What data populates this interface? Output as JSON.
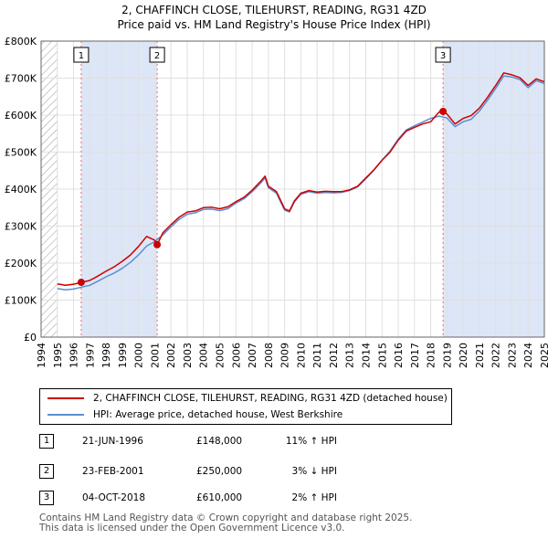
{
  "title_line1": "2, CHAFFINCH CLOSE, TILEHURST, READING, RG31 4ZD",
  "title_line2": "Price paid vs. HM Land Registry's House Price Index (HPI)",
  "colors": {
    "price_line": "#cc0000",
    "hpi_line": "#5b8fd0",
    "shade": "#dde6f7",
    "hatch": "#999999",
    "marker_vline": "#e46d6d"
  },
  "chart_data": {
    "type": "line",
    "title": "Price paid vs. HM Land Registry's House Price Index (HPI)",
    "xlabel": "",
    "ylabel": "",
    "xlim": [
      1994,
      2025
    ],
    "ylim": [
      0,
      800000
    ],
    "y_ticks": [
      {
        "value": 0,
        "label": "£0"
      },
      {
        "value": 100000,
        "label": "£100K"
      },
      {
        "value": 200000,
        "label": "£200K"
      },
      {
        "value": 300000,
        "label": "£300K"
      },
      {
        "value": 400000,
        "label": "£400K"
      },
      {
        "value": 500000,
        "label": "£500K"
      },
      {
        "value": 600000,
        "label": "£600K"
      },
      {
        "value": 700000,
        "label": "£700K"
      },
      {
        "value": 800000,
        "label": "£800K"
      }
    ],
    "x_ticks": [
      "1994",
      "1995",
      "1996",
      "1997",
      "1998",
      "1999",
      "2000",
      "2001",
      "2002",
      "2003",
      "2004",
      "2005",
      "2006",
      "2007",
      "2008",
      "2009",
      "2010",
      "2011",
      "2012",
      "2013",
      "2014",
      "2015",
      "2016",
      "2017",
      "2018",
      "2019",
      "2020",
      "2021",
      "2022",
      "2023",
      "2024",
      "2025"
    ],
    "grid": true,
    "data_start_year": 1995,
    "data_end_year": 2025,
    "series": [
      {
        "name": "2, CHAFFINCH CLOSE, TILEHURST, READING, RG31 4ZD (detached house)",
        "x": [
          1995.0,
          1995.5,
          1996.0,
          1996.47,
          1997.0,
          1997.5,
          1998.0,
          1998.5,
          1999.0,
          1999.5,
          2000.0,
          2000.5,
          2001.0,
          2001.15,
          2001.5,
          2002.0,
          2002.5,
          2003.0,
          2003.5,
          2004.0,
          2004.5,
          2005.0,
          2005.5,
          2006.0,
          2006.5,
          2007.0,
          2007.5,
          2007.8,
          2008.0,
          2008.5,
          2009.0,
          2009.3,
          2009.6,
          2010.0,
          2010.5,
          2011.0,
          2011.5,
          2012.0,
          2012.5,
          2013.0,
          2013.5,
          2014.0,
          2014.5,
          2015.0,
          2015.5,
          2016.0,
          2016.5,
          2017.0,
          2017.5,
          2018.0,
          2018.5,
          2018.76,
          2019.0,
          2019.5,
          2020.0,
          2020.5,
          2021.0,
          2021.5,
          2022.0,
          2022.5,
          2023.0,
          2023.5,
          2024.0,
          2024.5,
          2025.0
        ],
        "values": [
          144000,
          140000,
          143000,
          148000,
          153000,
          165000,
          178000,
          190000,
          205000,
          222000,
          245000,
          272000,
          262000,
          250000,
          282000,
          304000,
          324000,
          338000,
          341000,
          350000,
          351000,
          347000,
          352000,
          366000,
          378000,
          397000,
          420000,
          435000,
          408000,
          393000,
          347000,
          341000,
          368000,
          389000,
          396000,
          392000,
          394000,
          393000,
          393000,
          398000,
          408000,
          430000,
          452000,
          478000,
          500000,
          532000,
          557000,
          567000,
          576000,
          582000,
          608000,
          610000,
          603000,
          576000,
          591000,
          599000,
          619000,
          648000,
          680000,
          714000,
          709000,
          701000,
          680000,
          698000,
          690000
        ]
      },
      {
        "name": "HPI: Average price, detached house, West Berkshire",
        "x": [
          1995.0,
          1995.5,
          1996.0,
          1996.5,
          1997.0,
          1997.5,
          1998.0,
          1998.5,
          1999.0,
          1999.5,
          2000.0,
          2000.5,
          2001.0,
          2001.5,
          2002.0,
          2002.5,
          2003.0,
          2003.5,
          2004.0,
          2004.5,
          2005.0,
          2005.5,
          2006.0,
          2006.5,
          2007.0,
          2007.5,
          2007.8,
          2008.0,
          2008.5,
          2009.0,
          2009.3,
          2009.6,
          2010.0,
          2010.5,
          2011.0,
          2011.5,
          2012.0,
          2012.5,
          2013.0,
          2013.5,
          2014.0,
          2014.5,
          2015.0,
          2015.5,
          2016.0,
          2016.5,
          2017.0,
          2017.5,
          2018.0,
          2018.5,
          2019.0,
          2019.5,
          2020.0,
          2020.5,
          2021.0,
          2021.5,
          2022.0,
          2022.5,
          2023.0,
          2023.5,
          2024.0,
          2024.5,
          2025.0
        ],
        "values": [
          131000,
          128000,
          130000,
          135000,
          140000,
          151000,
          163000,
          173000,
          186000,
          202000,
          222000,
          246000,
          258000,
          276000,
          298000,
          318000,
          332000,
          336000,
          345000,
          346000,
          342000,
          347000,
          362000,
          374000,
          393000,
          415000,
          430000,
          404000,
          389000,
          343000,
          338000,
          365000,
          386000,
          393000,
          389000,
          391000,
          390000,
          391000,
          396000,
          406000,
          428000,
          451000,
          478000,
          503000,
          535000,
          560000,
          571000,
          581000,
          591000,
          597000,
          592000,
          569000,
          582000,
          589000,
          611000,
          640000,
          672000,
          706000,
          703000,
          696000,
          674000,
          693000,
          685000
        ]
      }
    ],
    "annotations": [
      {
        "label": "1",
        "x": 1996.47
      },
      {
        "label": "2",
        "x": 2001.15
      },
      {
        "label": "3",
        "x": 2018.76
      }
    ]
  },
  "legend": {
    "price_label": "2, CHAFFINCH CLOSE, TILEHURST, READING, RG31 4ZD (detached house)",
    "hpi_label": "HPI: Average price, detached house, West Berkshire"
  },
  "sales": [
    {
      "num": "1",
      "date": "21-JUN-1996",
      "price": "£148,000",
      "hpi": "11% ↑ HPI"
    },
    {
      "num": "2",
      "date": "23-FEB-2001",
      "price": "£250,000",
      "hpi": "3% ↓ HPI"
    },
    {
      "num": "3",
      "date": "04-OCT-2018",
      "price": "£610,000",
      "hpi": "2% ↑ HPI"
    }
  ],
  "footer": {
    "line1": "Contains HM Land Registry data © Crown copyright and database right 2025.",
    "line2": "This data is licensed under the Open Government Licence v3.0."
  }
}
